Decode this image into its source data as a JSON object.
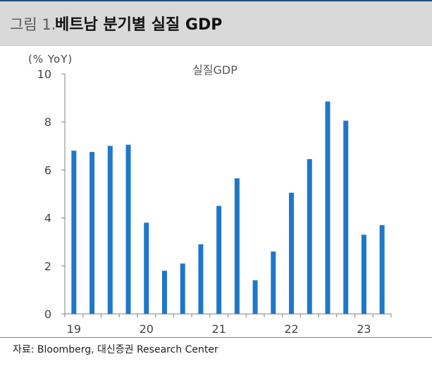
{
  "header": {
    "title_prefix": "그림 1.",
    "title_main": "베트남 분기별 실질 GDP"
  },
  "footer": {
    "source": "자료: Bloomberg, 대신증권 Research Center"
  },
  "colors": {
    "bar": "#1f77c9",
    "header_bg": "#d9d9d9",
    "accent_rule": "#1f4e79"
  },
  "chart_data": {
    "type": "bar",
    "unit_label": "(% YoY)",
    "legend_label": "실질GDP",
    "ylim": [
      0,
      10
    ],
    "y_ticks": [
      0,
      2,
      4,
      6,
      8,
      10
    ],
    "x_tick_labels": [
      "19",
      "20",
      "21",
      "22",
      "23"
    ],
    "x_tick_positions": [
      0,
      4,
      8,
      12,
      16
    ],
    "categories": [
      "19Q1",
      "19Q2",
      "19Q3",
      "19Q4",
      "20Q1",
      "20Q2",
      "20Q3",
      "20Q4",
      "21Q1",
      "21Q2",
      "21Q3",
      "21Q4",
      "22Q1",
      "22Q2",
      "22Q3",
      "22Q4",
      "23Q1",
      "23Q2"
    ],
    "values": [
      6.8,
      6.75,
      7.0,
      7.05,
      3.8,
      1.8,
      2.1,
      2.9,
      4.5,
      5.65,
      1.4,
      2.6,
      5.05,
      6.45,
      8.85,
      8.05,
      3.3,
      3.7
    ],
    "grid": false,
    "legend_position": "top-center"
  }
}
